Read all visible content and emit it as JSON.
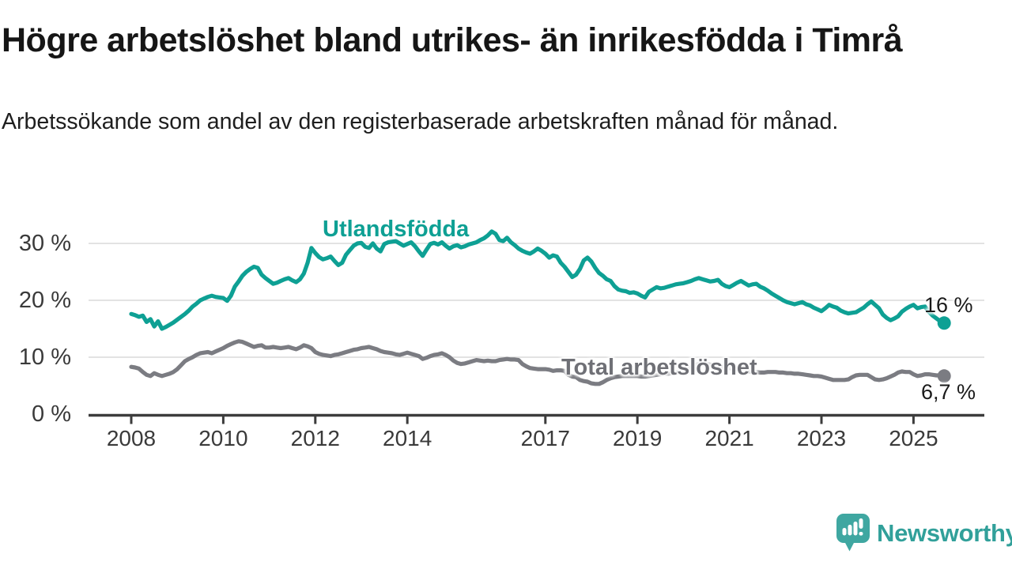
{
  "header": {
    "title": "Högre arbetslöshet bland utrikes- än inrikesfödda i Timrå",
    "subtitle": "Arbetssökande som andel av den registerbaserade arbetskraften månad för månad."
  },
  "footer": {
    "brand": "Newsworthy"
  },
  "colors": {
    "accent_teal": "#0ea094",
    "line_gray": "#7b7c82",
    "grid": "#dadada",
    "axis": "#3c3c3c",
    "logo_teal": "#3fa7a1",
    "wordmark_teal": "#31a09a"
  },
  "chart_data": {
    "type": "line",
    "title": "Högre arbetslöshet bland utrikes- än inrikesfödda i Timrå",
    "subtitle": "Arbetssökande som andel av den registerbaserade arbetskraften månad för månad.",
    "xlabel": "",
    "ylabel": "",
    "x_start": "2008-01",
    "x_end": "2025-09",
    "frequency": "monthly",
    "x_start_year": 2008,
    "xticks_years": [
      2008,
      2010,
      2012,
      2014,
      2017,
      2019,
      2021,
      2023,
      2025
    ],
    "x_tick_labels": [
      "2008",
      "2010",
      "2012",
      "2014",
      "2017",
      "2019",
      "2021",
      "2023",
      "2025"
    ],
    "yticks": [
      0,
      10,
      20,
      30
    ],
    "y_tick_labels": [
      "0 %",
      "10 %",
      "20 %",
      "30 %"
    ],
    "ylim": [
      0,
      34
    ],
    "grid": "horizontal",
    "legend_position": "inline-labels",
    "series": [
      {
        "name": "Utlandsfödda",
        "color": "#0ea094",
        "end_label": "16 %",
        "end_value": 16.0,
        "values": [
          17.6,
          17.4,
          17.1,
          17.3,
          16.2,
          16.7,
          15.4,
          16.3,
          15.0,
          15.3,
          15.7,
          16.1,
          16.6,
          17.1,
          17.6,
          18.2,
          18.9,
          19.4,
          20.0,
          20.3,
          20.6,
          20.8,
          20.6,
          20.5,
          20.4,
          19.9,
          20.8,
          22.4,
          23.3,
          24.3,
          25.0,
          25.5,
          25.9,
          25.7,
          24.5,
          23.9,
          23.4,
          22.9,
          23.1,
          23.4,
          23.7,
          23.9,
          23.5,
          23.2,
          23.7,
          24.7,
          26.6,
          29.2,
          28.3,
          27.6,
          27.2,
          27.4,
          27.7,
          26.9,
          26.2,
          26.6,
          28.0,
          28.8,
          29.6,
          30.0,
          30.1,
          29.4,
          29.2,
          30.0,
          29.1,
          28.6,
          29.9,
          30.2,
          30.3,
          30.4,
          30.0,
          29.6,
          29.9,
          30.2,
          29.5,
          28.6,
          27.8,
          28.9,
          29.9,
          30.1,
          29.8,
          30.2,
          29.6,
          29.1,
          29.5,
          29.7,
          29.3,
          29.5,
          29.8,
          30.0,
          30.2,
          30.6,
          30.9,
          31.4,
          32.1,
          31.7,
          30.6,
          30.4,
          31.0,
          30.2,
          29.7,
          29.1,
          28.7,
          28.4,
          28.2,
          28.6,
          29.1,
          28.7,
          28.2,
          27.5,
          27.9,
          27.7,
          26.6,
          25.9,
          25.0,
          24.1,
          24.5,
          25.5,
          27.0,
          27.5,
          26.8,
          25.7,
          24.8,
          24.3,
          23.7,
          23.4,
          22.5,
          21.9,
          21.7,
          21.6,
          21.3,
          21.4,
          21.2,
          20.8,
          20.5,
          21.5,
          21.9,
          22.3,
          22.1,
          22.2,
          22.4,
          22.6,
          22.8,
          22.9,
          23.0,
          23.2,
          23.4,
          23.7,
          23.9,
          23.7,
          23.5,
          23.3,
          23.4,
          23.6,
          22.9,
          22.5,
          22.3,
          22.7,
          23.1,
          23.4,
          23.0,
          22.6,
          22.8,
          22.9,
          22.4,
          22.1,
          21.7,
          21.2,
          20.8,
          20.4,
          20.0,
          19.7,
          19.5,
          19.3,
          19.5,
          19.7,
          19.3,
          19.1,
          18.7,
          18.4,
          18.1,
          18.6,
          19.2,
          18.9,
          18.7,
          18.2,
          17.9,
          17.7,
          17.8,
          17.9,
          18.3,
          18.7,
          19.3,
          19.8,
          19.2,
          18.6,
          17.5,
          16.9,
          16.5,
          16.8,
          17.2,
          18.0,
          18.5,
          18.9,
          19.2,
          18.6,
          18.8,
          18.9,
          18.0,
          17.3,
          16.8,
          16.3,
          16.0
        ]
      },
      {
        "name": "Total arbetslöshet",
        "color": "#7b7c82",
        "end_label": "6,7 %",
        "end_value": 6.7,
        "values": [
          8.3,
          8.2,
          8.0,
          7.4,
          6.9,
          6.7,
          7.2,
          6.9,
          6.7,
          6.9,
          7.1,
          7.4,
          7.9,
          8.6,
          9.3,
          9.7,
          10.0,
          10.4,
          10.7,
          10.8,
          10.9,
          10.7,
          11.0,
          11.3,
          11.6,
          12.0,
          12.3,
          12.6,
          12.8,
          12.7,
          12.4,
          12.1,
          11.8,
          12.0,
          12.1,
          11.7,
          11.7,
          11.8,
          11.7,
          11.6,
          11.7,
          11.8,
          11.6,
          11.4,
          11.7,
          12.1,
          11.9,
          11.6,
          10.9,
          10.6,
          10.4,
          10.3,
          10.2,
          10.4,
          10.5,
          10.7,
          10.9,
          11.1,
          11.3,
          11.4,
          11.6,
          11.7,
          11.8,
          11.6,
          11.4,
          11.1,
          10.9,
          10.8,
          10.7,
          10.5,
          10.4,
          10.6,
          10.8,
          10.6,
          10.4,
          10.2,
          9.7,
          9.9,
          10.2,
          10.4,
          10.5,
          10.7,
          10.4,
          10.0,
          9.4,
          9.0,
          8.8,
          8.9,
          9.1,
          9.3,
          9.5,
          9.4,
          9.3,
          9.4,
          9.3,
          9.3,
          9.5,
          9.6,
          9.7,
          9.6,
          9.6,
          9.5,
          8.8,
          8.4,
          8.1,
          8.0,
          7.9,
          7.9,
          7.9,
          7.8,
          7.6,
          7.7,
          7.7,
          7.6,
          6.9,
          6.6,
          6.5,
          6.0,
          5.8,
          5.7,
          5.4,
          5.3,
          5.3,
          5.6,
          6.0,
          6.3,
          6.5,
          6.6,
          6.7,
          6.7,
          6.7,
          6.7,
          6.7,
          6.6,
          6.6,
          6.7,
          6.8,
          6.9,
          7.0,
          7.1,
          7.1,
          7.2,
          7.3,
          7.4,
          7.6,
          7.8,
          8.2,
          8.6,
          8.8,
          8.9,
          8.8,
          8.7,
          8.6,
          8.4,
          8.3,
          8.2,
          8.1,
          8.0,
          7.9,
          7.8,
          7.6,
          7.5,
          7.4,
          7.4,
          7.3,
          7.3,
          7.4,
          7.4,
          7.4,
          7.3,
          7.3,
          7.2,
          7.2,
          7.1,
          7.1,
          7.0,
          6.9,
          6.8,
          6.7,
          6.7,
          6.6,
          6.4,
          6.2,
          6.0,
          6.0,
          6.0,
          6.0,
          6.1,
          6.5,
          6.8,
          6.9,
          6.9,
          6.9,
          6.5,
          6.1,
          6.0,
          6.1,
          6.3,
          6.6,
          6.9,
          7.3,
          7.5,
          7.4,
          7.4,
          7.0,
          6.7,
          6.8,
          7.0,
          7.0,
          6.9,
          6.8,
          6.8,
          6.7
        ]
      }
    ]
  }
}
